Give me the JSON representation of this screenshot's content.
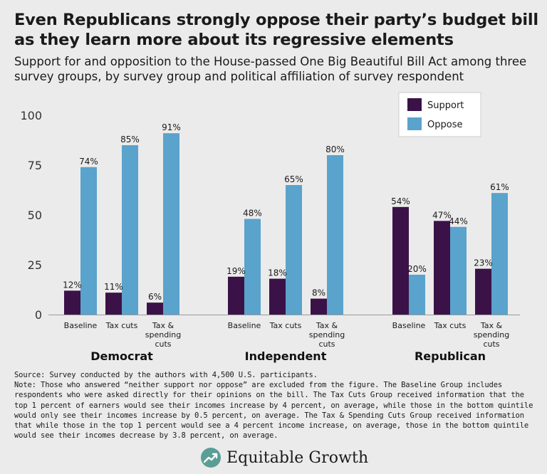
{
  "title": "Even Republicans strongly oppose their party’s budget bill as they learn more about its regressive elements",
  "subtitle": "Support for and opposition to the House-passed One Big Beautiful Bill Act among three survey groups, by survey group and political affiliation of survey respondent",
  "colors": {
    "support": "#3b1248",
    "oppose": "#5aa3cc",
    "background": "#ebebeb",
    "brand": "#5a9e96"
  },
  "chart_data": {
    "type": "bar",
    "ylim": [
      0,
      100
    ],
    "yticks": [
      0,
      25,
      50,
      75,
      100
    ],
    "grid": false,
    "legend_position": "top-right",
    "series": [
      {
        "name": "Support"
      },
      {
        "name": "Oppose"
      }
    ],
    "groups": [
      {
        "name": "Democrat",
        "categories": [
          {
            "label": [
              "Baseline"
            ],
            "support": 12,
            "oppose": 74
          },
          {
            "label": [
              "Tax cuts"
            ],
            "support": 11,
            "oppose": 85
          },
          {
            "label": [
              "Tax &",
              "spending",
              "cuts"
            ],
            "support": 6,
            "oppose": 91
          }
        ]
      },
      {
        "name": "Independent",
        "categories": [
          {
            "label": [
              "Baseline"
            ],
            "support": 19,
            "oppose": 48
          },
          {
            "label": [
              "Tax cuts"
            ],
            "support": 18,
            "oppose": 65
          },
          {
            "label": [
              "Tax &",
              "spending",
              "cuts"
            ],
            "support": 8,
            "oppose": 80
          }
        ]
      },
      {
        "name": "Republican",
        "categories": [
          {
            "label": [
              "Baseline"
            ],
            "support": 54,
            "oppose": 20
          },
          {
            "label": [
              "Tax cuts"
            ],
            "support": 47,
            "oppose": 44
          },
          {
            "label": [
              "Tax &",
              "spending",
              "cuts"
            ],
            "support": 23,
            "oppose": 61
          }
        ]
      }
    ]
  },
  "source": "Source: Survey conducted by the authors with 4,500 U.S. participants.",
  "note": "Note: Those who answered “neither support nor oppose” are excluded from the figure. The Baseline Group includes respondents who were asked directly for their opinions on the bill. The Tax Cuts Group received information that the top 1 percent of earners would see their incomes increase by 4 percent, on average, while those in the bottom quintile would only see their incomes increase by 0.5 percent, on average. The Tax & Spending Cuts Group received information that while those in the top 1 percent would see a 4 percent income increase, on average, those in the bottom quintile would see their incomes decrease by 3.8 percent, on average.",
  "brand": {
    "name": "Equitable Growth",
    "logo_icon": "growth-arrow-icon"
  }
}
